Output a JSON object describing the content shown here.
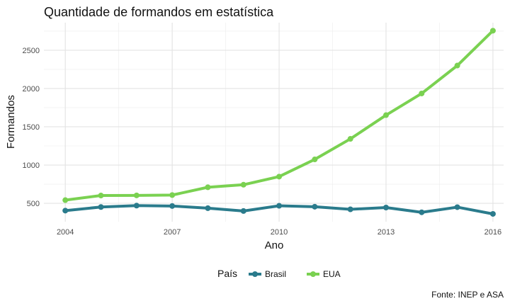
{
  "chart_data": {
    "type": "line",
    "title": "Quantidade de formandos em estatística",
    "xlabel": "Ano",
    "ylabel": "Formandos",
    "caption": "Fonte: INEP e ASA",
    "x": [
      2004,
      2005,
      2006,
      2007,
      2008,
      2009,
      2010,
      2011,
      2012,
      2013,
      2014,
      2015,
      2016
    ],
    "series": [
      {
        "name": "Brasil",
        "color": "#2a7b8c",
        "values": [
          405,
          452,
          470,
          465,
          437,
          400,
          468,
          456,
          422,
          445,
          383,
          450,
          362
        ]
      },
      {
        "name": "EUA",
        "color": "#7ad151",
        "values": [
          542,
          602,
          604,
          608,
          710,
          743,
          849,
          1074,
          1342,
          1652,
          1935,
          2300,
          2755
        ]
      }
    ],
    "x_ticks": [
      "2004",
      "2007",
      "2010",
      "2013",
      "2016"
    ],
    "y_ticks": [
      "500",
      "1000",
      "1500",
      "2000",
      "2500"
    ],
    "xlim": [
      2003.4,
      2016.3
    ],
    "ylim": [
      260,
      2860
    ],
    "legend": {
      "title": "País",
      "position": "bottom"
    },
    "grid": true
  }
}
